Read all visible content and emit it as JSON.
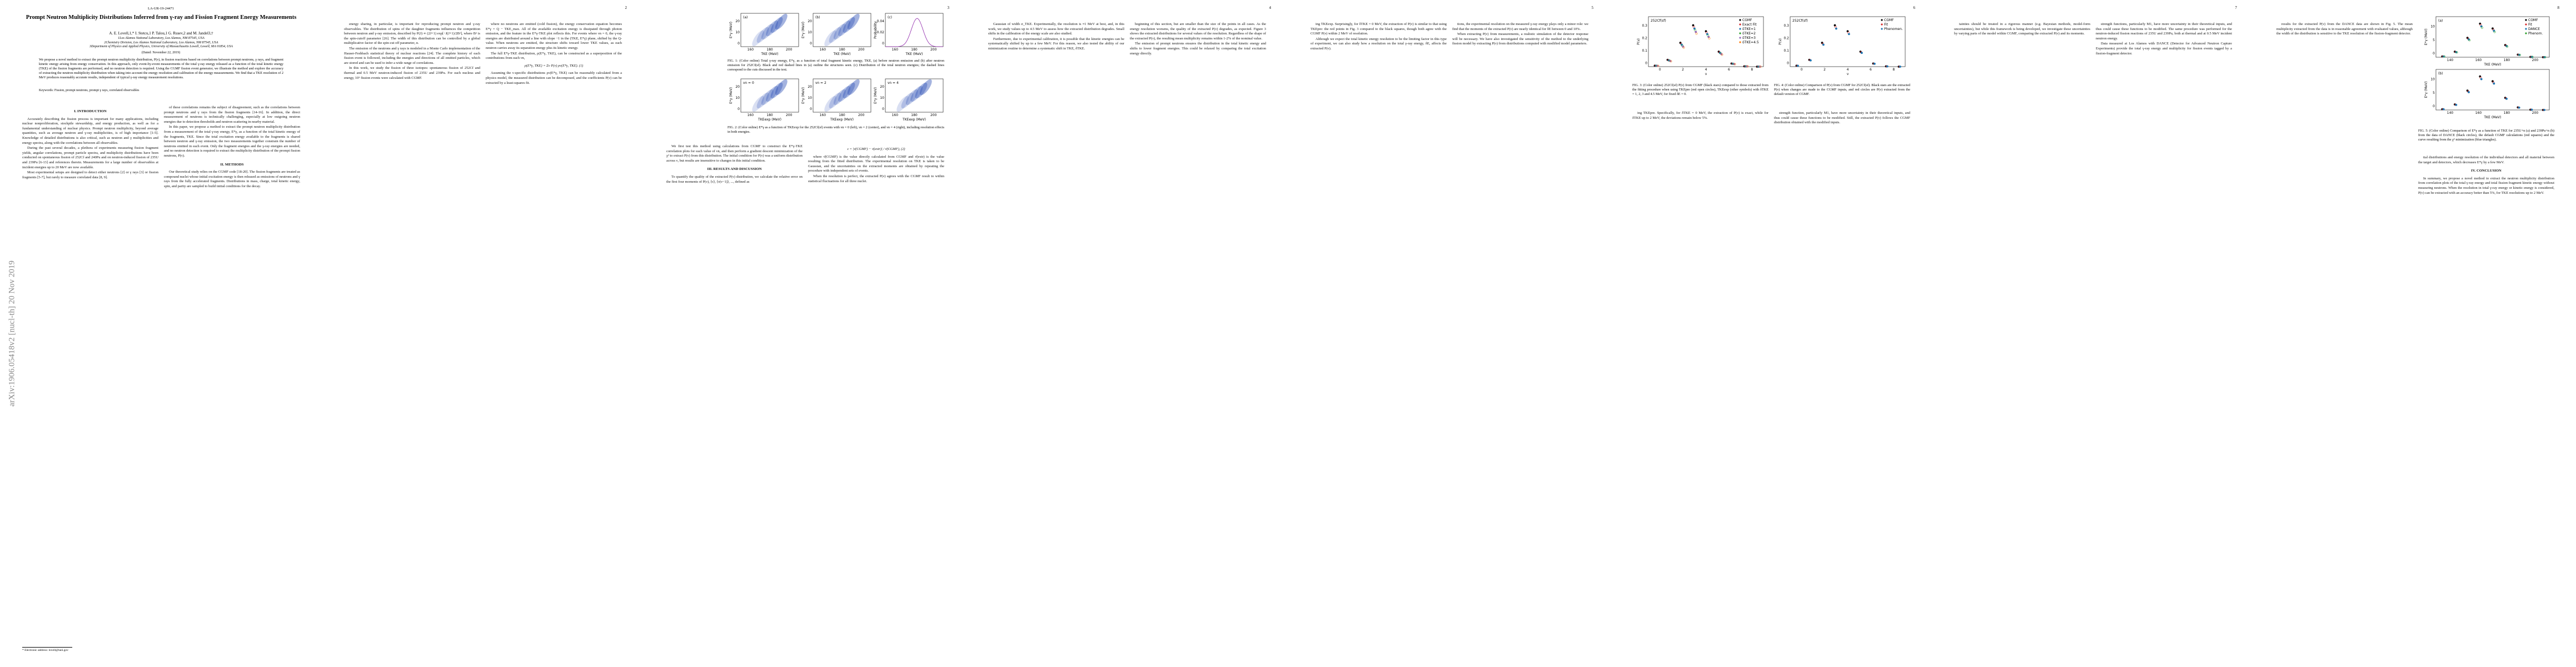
{
  "stamp": "arXiv:1906.05418v2  [nucl-th]  20 Nov 2019",
  "page_numbers": [
    "2",
    "3",
    "4",
    "5",
    "6",
    "7",
    "8"
  ],
  "p1": {
    "report_number": "LA-UR-19-24471",
    "title": "Prompt Neutron Multiplicity Distributions Inferred from γ-ray and Fission Fragment Energy Measurements",
    "authors": "A. E. Lovell,1,* I. Stetcu,1 P. Talou,1 G. Rusev,2 and M. Jandel3,†",
    "affiliations": [
      "1Los Alamos National Laboratory, Los Alamos, NM 87545, USA",
      "2Chemistry Division, Los Alamos National Laboratory, Los Alamos, NM 87545, USA",
      "3Department of Physics and Applied Physics, University of Massachusetts Lowell, Lowell, MA 01854, USA"
    ],
    "dated": "(Dated: November 22, 2019)",
    "abstract": "We propose a novel method to extract the prompt neutron multiplicity distribution, P(ν), in fission reactions based on correlations between prompt neutrons, γ rays, and fragment kinetic energy arising from energy conservation. In this approach, only event-by-event measurements of the total γ-ray energy released as a function of the total kinetic energy (TKE) of the fission fragments are performed, and no neutron detection is required. Using the CGMF fission event generator, we illustrate the method and explore the accuracy of extracting the neutron multiplicity distribution when taking into account the energy resolution and calibration of the energy measurements. We find that a TKE resolution of 2 MeV produces reasonably accurate results, independent of typical γ-ray energy measurement resolutions.",
    "keywords": "Keywords: Fission, prompt neutrons, prompt γ rays, correlated observables",
    "col1": [
      {
        "heading": "I. INTRODUCTION"
      },
      "Accurately describing the fission process is important for many applications, including nuclear nonproliferation, stockpile stewardship, and energy production, as well as for a fundamental understanding of nuclear physics. Prompt neutron multiplicity, beyond average quantities, such as average neutron and γ-ray multiplicities, is of high importance [1-5]. Knowledge of detailed distributions is also critical, such as neutron and γ multiplicities and energy spectra, along with the correlations between all observables.",
      "During the past several decades, a plethora of experiments measuring fission fragment yields, angular correlations, prompt particle spectra, and multiplicity distributions have been conducted on spontaneous fission of 252Cf and 240Pu and on neutron-induced fission of 235U and 239Pu [6-13] and references therein. Measurements for a large number of observables at incident energies up to 20 MeV are now available.",
      "Most experimental setups are designed to detect either neutrons [2] or γ rays [3] or fission fragments [5-7], but rarely to measure correlated data [8, 9]."
    ],
    "col2": [
      "of these correlations remains the subject of disagreement, such as the correlations between prompt neutrons and γ rays from the fission fragments [14-16]. In addition, the direct measurement of neutrons is technically challenging, especially at low outgoing neutron energies due to detection thresholds and neutron scattering in nearby material.",
      "In this paper, we propose a method to extract the prompt neutron multiplicity distribution from a measurement of the total γ-ray energy, E*γ, as a function of the total kinetic energy of the fragments, TKE. Since the total excitation energy available to the fragments is shared between neutron and γ-ray emission, the two measurements together constrain the number of neutrons emitted in each event. Only the fragment energies and the γ-ray energies are needed, and no neutron detection is required to extract the multiplicity distribution of the prompt fission neutrons, P(ν).",
      {
        "heading": "II. METHODS"
      },
      "Our theoretical study relies on the CGMF code [18-20]. The fission fragments are treated as compound nuclei whose initial excitation energy is then released as emissions of neutrons and γ rays from the fully accelerated fragments. Distributions in mass, charge, total kinetic energy, spin, and parity are sampled to build initial conditions for the decay."
    ],
    "footnote": "* Electronic address: lovell@lanl.gov"
  },
  "p2": {
    "col1": [
      "energy sharing, in particular, is important for reproducing prompt neutron and γ-ray observables. The distribution of spins of the daughter fragments influences the competition between neutron and γ-ray emission, described by P(J) ∝ (2J+1) exp[−J(J+1)/2B²], where B² is the spin-cutoff parameter [26]. The width of this distribution can be controlled by a global multiplicative factor of the spin-cut off parameter, α.",
      "The emission of the neutrons and γ rays is modeled in a Monte Carlo implementation of the Hauser-Feshbach statistical theory of nuclear reactions [24]. The complete history of each fission event is followed, including the energies and directions of all emitted particles, which are stored and can be used to infer a wide range of correlations.",
      "In this work, we study the fission of three isotopes: spontaneous fission of 252Cf and thermal and 0.5 MeV neutron-induced fission of 235U and 239Pu. For each nucleus and energy, 10⁶ fission events were calculated with CGMF."
    ],
    "col2": [
      "where no neutrons are emitted (cold fission), the energy conservation equation becomes E*γ = Q − TKE_max. All of the available excitation energy is dissipated through photon emission, and the feature in the E*γ-TKE plot reflects this. For events where νn = 0, the γ-ray energies are distributed around a line with slope −1 in the (TKE, E*γ) plane, shifted by the Q-value. When neutrons are emitted, the structure shifts toward lower TKE values, as each neutron carries away its separation energy plus its kinetic energy.",
      "The full E*γ-TKE distribution, ρ(E*γ, TKE), can be constructed as a superposition of the contributions from each νn,",
      {
        "equation": "ρ(E*γ, TKE) = Σν P(ν) ρν(E*γ, TKE).     (1)"
      },
      "Assuming the ν-specific distributions ρν(E*γ, TKE) can be reasonably calculated from a physics model, the measured distribution can be decomposed, and the coefficients P(ν) can be extracted by a least-squares fit."
    ]
  },
  "p3": {
    "fig1": {
      "panels": [
        {
          "label": "(a)",
          "xlabel": "TKE (MeV)",
          "ylabel": "E*γ (MeV)",
          "xticks": [
            "160",
            "180",
            "200"
          ],
          "yticks": [
            "0",
            "10",
            "20"
          ]
        },
        {
          "label": "(b)",
          "xlabel": "TKE (MeV)",
          "ylabel": "E*γ (MeV)",
          "xticks": [
            "160",
            "180",
            "200"
          ],
          "yticks": [
            "0",
            "10",
            "20"
          ]
        },
        {
          "label": "(c)",
          "xlabel": "TKE (MeV)",
          "ylabel": "Probability",
          "xticks": [
            "160",
            "180",
            "200"
          ],
          "yticks": [
            "0",
            "0.02",
            "0.04"
          ]
        }
      ],
      "caption": "FIG. 1: (Color online) Total γ-ray energy, E*γ, as a function of total fragment kinetic energy, TKE, (a) before neutron emission and (b) after neutron emission for 252Cf(sf). Black and red dashed lines in (a) outline the structures seen. (c) Distribution of the total neutron energies; the dashed lines correspond to the cuts discussed in the text."
    },
    "fig2": {
      "panels": [
        {
          "label": "νn = 0",
          "xlabel": "TKEexp (MeV)",
          "ylabel": "E*γ (MeV)",
          "xticks": [
            "160",
            "180",
            "200"
          ],
          "yticks": [
            "0",
            "10",
            "20"
          ]
        },
        {
          "label": "νn = 2",
          "xlabel": "TKEexp (MeV)",
          "ylabel": "E*γ (MeV)",
          "xticks": [
            "160",
            "180",
            "200"
          ],
          "yticks": [
            "0",
            "10",
            "20"
          ]
        },
        {
          "label": "νn = 4",
          "xlabel": "TKEexp (MeV)",
          "ylabel": "E*γ (MeV)",
          "xticks": [
            "160",
            "180",
            "200"
          ],
          "yticks": [
            "0",
            "10",
            "20"
          ]
        }
      ],
      "caption": "FIG. 2: (Color online) E*γ as a function of TKEexp for the 252Cf(sf) events with νn = 0 (left), νn = 2 (center), and νn = 4 (right), including resolution effects in both energies."
    },
    "col1": [
      "We first test this method using calculations from CGMF to construct the E*γ-TKE correlation plots for each value of νn, and then perform a gradient descent minimization of the χ² to extract P(ν) from this distribution. The initial condition for P(ν) was a uniform distribution across ν, but results are insensitive to changes in this initial condition.",
      {
        "heading": "III. RESULTS AND DISCUSSION"
      },
      "To quantify the quality of the extracted P(ν) distribution, we calculate the relative error on the first four moments of P(ν), ⟨ν⟩, ⟨ν(ν−1)⟩, ..., defined as"
    ],
    "col2": [
      {
        "equation": "ε = |ν̄(CGMF) − ν̄(extr)| / ν̄(CGMF),     (2)"
      },
      "where ν̄(CGMF) is the value directly calculated from CGMF and ν̄(extr) is the value resulting from the fitted distribution. The experimental resolution on TKE is taken to be Gaussian, and the uncertainties on the extracted moments are obtained by repeating the procedure with independent sets of events.",
      "When the resolution is perfect, the extracted P(ν) agrees with the CGMF result to within statistical fluctuations for all three nuclei."
    ]
  },
  "p4": {
    "col1": [
      "Gaussian of width σ_TKE. Experimentally, the resolution is ≈1 MeV at best, and, in this work, we study values up to 4.5 MeV to assess how the extracted distribution degrades. Small shifts in the calibration of the energy scale are also studied.",
      "Furthermore, due to experimental calibration, it is possible that the kinetic energies can be systematically shifted by up to a few MeV. For this reason, we also tested the ability of our minimization routine to determine a systematic shift in TKE, δTKE."
    ],
    "col2": [
      "beginning of this section, but are smaller than the size of the points in all cases. As the energy resolution worsens, the quality of the extracted P(ν) degrades, as expected. Figure 3 shows the extracted distributions for several values of the resolution. Regardless of the shape of the extracted P(ν), the resulting mean multiplicity remains within 1-2% of the nominal value.",
      "The emission of prompt neutrons ensures the distribution in the total kinetic energy and shifts to lower fragment energies. This could be relaxed by comparing the total excitation energy directly."
    ]
  },
  "p5": {
    "col1": [
      "ing TKEexp. Surprisingly, for δTKE = 0 MeV, the extraction of P(ν) is similar to that using TKEpre: the red points in Fig. 3 compared to the black squares, though both agree with the CGMF P(ν) within 2 MeV of resolution.",
      "Although we expect the total kinetic energy resolution to be the limiting factor in this type of experiment, we can also study how a resolution on the total γ-ray energy, δE, affects the extracted P(ν)."
    ],
    "col2": [
      "tions, the experimental resolution on the measured γ-ray energy plays only a minor role: we find that the moments of the extracted P(ν) are nearly identical for δE between 0 and 10%.",
      "When extracting P(ν) from measurements, a realistic simulation of the detector response will be necessary. We have also investigated the sensitivity of the method to the underlying fission model by extracting P(ν) from distributions computed with modified model parameters."
    ]
  },
  "p6": {
    "fig3": {
      "panel": {
        "label": "252Cf(sf)",
        "xlabel": "ν",
        "ylabel": "P(ν)",
        "xticks": [
          "0",
          "2",
          "4",
          "6",
          "8"
        ],
        "yticks": [
          "0",
          "0.1",
          "0.2",
          "0.3"
        ]
      },
      "legend": [
        "CGMF",
        "Exact Fit",
        "δTKE=1",
        "δTKE=2",
        "δTKE=3",
        "δTKE=4.5"
      ],
      "caption": "FIG. 3: (Color online) 252Cf(sf) P(ν) from CGMF (black stars) compared to those extracted from the fitting procedure when using TKEpre (red open circles), TKEexp (other symbols) with δTKE = 1, 2, 3 and 4.5 MeV, for fixed δE = 0."
    },
    "fig4": {
      "panel": {
        "label": "252Cf(sf)",
        "xlabel": "ν",
        "ylabel": "P(ν)",
        "xticks": [
          "0",
          "2",
          "4",
          "6",
          "8"
        ],
        "yticks": [
          "0",
          "0.1",
          "0.2",
          "0.3"
        ]
      },
      "legend": [
        "CGMF",
        "Fit",
        "Phenomen."
      ],
      "caption": "FIG. 4: (Color online) Comparison of P(ν) from CGMF for 252Cf(sf). Black stars are the extracted P(ν) when changes are made to the CGMF inputs, and red circles are P(ν) extracted from the default version of CGMF."
    },
    "col1": [
      "ing TKEpre. Specifically, for δTKE = 0 MeV, the extraction of P(ν) is exact, while for δTKE up to 2 MeV, the deviations remain below 5%."
    ],
    "col2": [
      "strength function, particularly M1, have more uncertainty in their theoretical inputs, and thus could cause these functions to be modified. Still, the extracted P(ν) follows the CGMF distribution obtained with the modified inputs."
    ]
  },
  "p7": {
    "col1": [
      "tainties should be treated in a rigorous manner (e.g. Bayesian methods, model-form uncertainties), but while this framework is being developed, we investigate these uncertainties by varying parts of the model within CGMF, comparing the extracted P(ν) and its moments."
    ],
    "col2": [
      "strength functions, particularly M1, have more uncertainty in their theoretical inputs, and thus could cause these functions to be modified. The same procedure was performed for the neutron-induced fission reactions of 235U and 239Pu, both at thermal and at 0.5 MeV incident neutron energy.",
      "Data measured at Los Alamos with DANCE (Detector for Advanced Neutron Capture Experiments) provide the total γ-ray energy and multiplicity for fission events tagged by a fission-fragment detector."
    ]
  },
  "p8": {
    "fig5": {
      "panels": [
        {
          "label": "(a)",
          "xlabel": "TKE (MeV)",
          "ylabel": "E*γ (MeV)",
          "xticks": [
            "140",
            "160",
            "180",
            "200"
          ],
          "yticks": [
            "0",
            "5",
            "10"
          ]
        },
        {
          "label": "(b)",
          "xlabel": "TKE (MeV)",
          "ylabel": "E*γ (MeV)",
          "xticks": [
            "140",
            "160",
            "180",
            "200"
          ],
          "yticks": [
            "0",
            "5",
            "10"
          ]
        }
      ],
      "legend": [
        "COMF",
        "Fit",
        "DANCE",
        "Phenom."
      ],
      "caption": "FIG. 5: (Color online) Comparison of E*γ as a function of TKE for 235U+n (a) and 239Pu+n (b) from the data of DANCE (black circles), the default CGMF calculations (red squares) and the curve resulting from the χ² minimization (blue triangles)."
    },
    "col1": [
      "results for the extracted P(ν) from the DANCE data are shown in Fig. 5. The mean multiplicity extracted from the data is in reasonable agreement with evaluated values, although the width of the distribution is sensitive to the TKE resolution of the fission-fragment detector."
    ],
    "col2": [
      "tial distributions and energy resolution of the individual detectors and all material between the target and detectors, which decreases E*γ by a few MeV.",
      {
        "heading": "IV. CONCLUSION"
      },
      "In summary, we propose a novel method to extract the neutron multiplicity distribution from correlation plots of the total γ-ray energy and total fission fragment kinetic energy without measuring neutrons. When the resolution in total γ-ray energy or kinetic energy is considered, P(ν) can be extracted with an accuracy better than 5%, for TKE resolutions up to 2 MeV."
    ]
  }
}
